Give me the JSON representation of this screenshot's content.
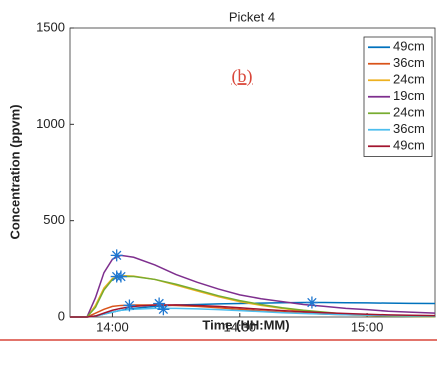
{
  "chart_data": {
    "type": "line",
    "title": "Picket 4",
    "annotation": "(b)",
    "xlabel": "Time (HH:MM)",
    "ylabel": "Concentration (ppvm)",
    "x": [
      830,
      834,
      836,
      838,
      840,
      842,
      845,
      850,
      855,
      860,
      865,
      870,
      875,
      880,
      885,
      890,
      895,
      900,
      905,
      910,
      916
    ],
    "xlim": [
      830,
      916
    ],
    "xticks": [
      {
        "value": 840,
        "label": "14:00"
      },
      {
        "value": 870,
        "label": "14:30"
      },
      {
        "value": 900,
        "label": "15:00"
      }
    ],
    "ylim": [
      0,
      1500
    ],
    "yticks": [
      0,
      500,
      1000,
      1500
    ],
    "legend": "northeast",
    "series": [
      {
        "name": "49cm",
        "color": "#0072bd",
        "values": [
          0,
          0,
          5,
          15,
          25,
          35,
          45,
          55,
          62,
          65,
          68,
          70,
          72,
          74,
          75,
          75,
          74,
          73,
          72,
          71,
          70
        ]
      },
      {
        "name": "36cm",
        "color": "#d95319",
        "values": [
          0,
          0,
          20,
          40,
          55,
          60,
          62,
          62,
          60,
          55,
          48,
          40,
          32,
          25,
          20,
          15,
          12,
          10,
          8,
          6,
          5
        ]
      },
      {
        "name": "24cm",
        "color": "#edb120",
        "values": [
          0,
          0,
          60,
          150,
          200,
          215,
          212,
          195,
          165,
          135,
          105,
          80,
          60,
          45,
          30,
          20,
          12,
          8,
          5,
          3,
          2
        ]
      },
      {
        "name": "19cm",
        "color": "#7e2f8e",
        "values": [
          0,
          0,
          100,
          230,
          300,
          320,
          310,
          270,
          220,
          180,
          145,
          115,
          95,
          80,
          65,
          55,
          45,
          38,
          30,
          25,
          20
        ]
      },
      {
        "name": "24cm",
        "color": "#77ac30",
        "values": [
          0,
          0,
          50,
          140,
          195,
          210,
          210,
          195,
          170,
          140,
          110,
          85,
          65,
          48,
          35,
          25,
          15,
          10,
          6,
          4,
          2
        ]
      },
      {
        "name": "36cm",
        "color": "#4dbeee",
        "values": [
          0,
          0,
          5,
          15,
          25,
          35,
          40,
          45,
          45,
          42,
          38,
          33,
          28,
          22,
          18,
          15,
          12,
          10,
          8,
          6,
          5
        ]
      },
      {
        "name": "49cm",
        "color": "#a2142f",
        "values": [
          0,
          0,
          5,
          20,
          35,
          45,
          55,
          62,
          63,
          60,
          55,
          48,
          40,
          33,
          27,
          22,
          18,
          14,
          11,
          9,
          7
        ]
      }
    ],
    "markers": {
      "color": "#1f77d0",
      "x": [
        841,
        841,
        842,
        844,
        851,
        852,
        887
      ],
      "y": [
        320,
        210,
        210,
        60,
        70,
        40,
        75
      ]
    }
  }
}
